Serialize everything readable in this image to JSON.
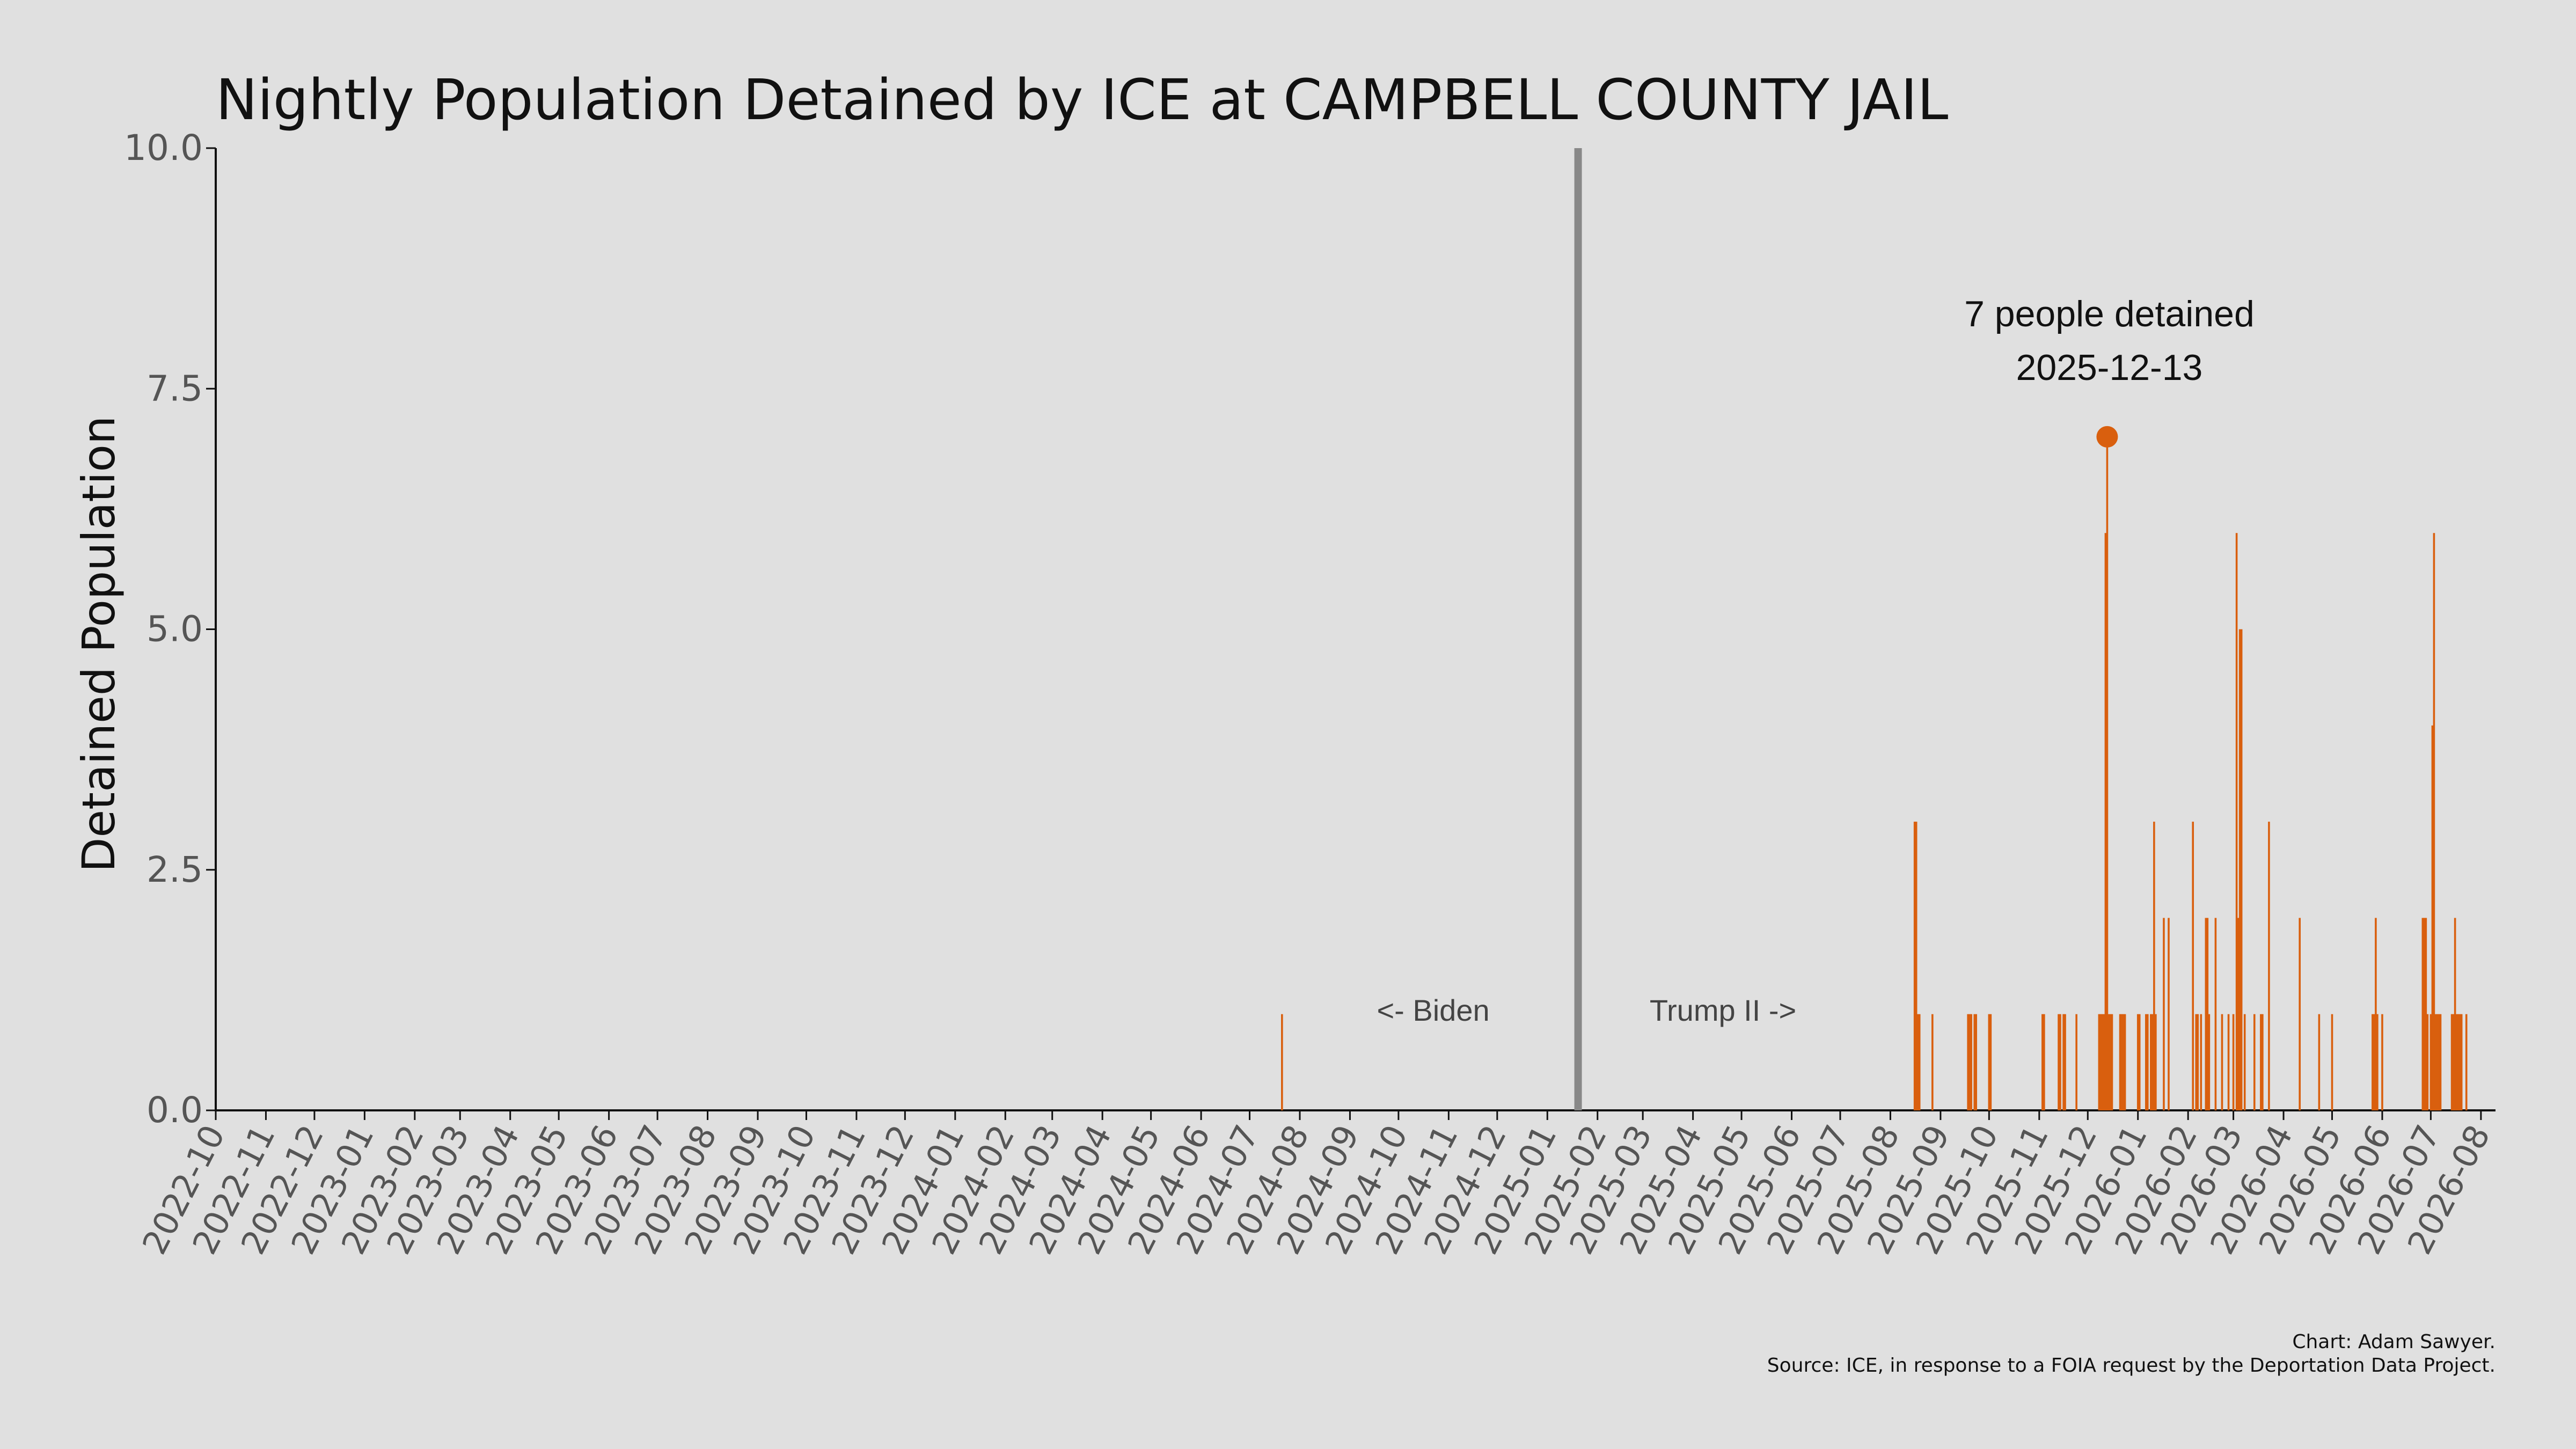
{
  "chart_data": {
    "type": "bar",
    "title": "Nightly Population Detained by ICE at CAMPBELL COUNTY JAIL",
    "ylabel": "Detained Population",
    "xlabel": "",
    "ylim": [
      0,
      10
    ],
    "xlim": [
      "2022-10-01",
      "2026-08-10"
    ],
    "y_ticks": [
      "0.0",
      "2.5",
      "5.0",
      "7.5",
      "10.0"
    ],
    "x_ticks": [
      "2022-10",
      "2022-11",
      "2022-12",
      "2023-01",
      "2023-02",
      "2023-03",
      "2023-04",
      "2023-05",
      "2023-06",
      "2023-07",
      "2023-08",
      "2023-09",
      "2023-10",
      "2023-11",
      "2023-12",
      "2024-01",
      "2024-02",
      "2024-03",
      "2024-04",
      "2024-05",
      "2024-06",
      "2024-07",
      "2024-08",
      "2024-09",
      "2024-10",
      "2024-11",
      "2024-12",
      "2025-01",
      "2025-02",
      "2025-03",
      "2025-04",
      "2025-05",
      "2025-06",
      "2025-07",
      "2025-08",
      "2025-09",
      "2025-10",
      "2025-11",
      "2025-12",
      "2026-01",
      "2026-02",
      "2026-03",
      "2026-04",
      "2026-05",
      "2026-06",
      "2026-07",
      "2026-08"
    ],
    "bar_color": "#d95f0e",
    "grid": false,
    "divider": {
      "date": "2025-01-20",
      "color": "#888888"
    },
    "era_labels": {
      "left": "<- Biden",
      "right": "Trump II ->"
    },
    "peak": {
      "date": "2025-12-13",
      "value": 7,
      "line1": "7 people detained",
      "line2": "2025-12-13"
    },
    "points": [
      {
        "x": "2024-07-21",
        "y": 1
      },
      {
        "x": "2025-08-16",
        "y": 3
      },
      {
        "x": "2025-08-17",
        "y": 3
      },
      {
        "x": "2025-08-18",
        "y": 1
      },
      {
        "x": "2025-08-19",
        "y": 1
      },
      {
        "x": "2025-08-27",
        "y": 1
      },
      {
        "x": "2025-09-18",
        "y": 1
      },
      {
        "x": "2025-09-19",
        "y": 1
      },
      {
        "x": "2025-09-20",
        "y": 1
      },
      {
        "x": "2025-09-22",
        "y": 1
      },
      {
        "x": "2025-09-23",
        "y": 1
      },
      {
        "x": "2025-10-01",
        "y": 1
      },
      {
        "x": "2025-10-02",
        "y": 1
      },
      {
        "x": "2025-11-03",
        "y": 1
      },
      {
        "x": "2025-11-04",
        "y": 1
      },
      {
        "x": "2025-11-13",
        "y": 1
      },
      {
        "x": "2025-11-14",
        "y": 1
      },
      {
        "x": "2025-11-16",
        "y": 1
      },
      {
        "x": "2025-11-17",
        "y": 1
      },
      {
        "x": "2025-11-24",
        "y": 1
      },
      {
        "x": "2025-12-08",
        "y": 1
      },
      {
        "x": "2025-12-09",
        "y": 1
      },
      {
        "x": "2025-12-10",
        "y": 1
      },
      {
        "x": "2025-12-11",
        "y": 1
      },
      {
        "x": "2025-12-12",
        "y": 6
      },
      {
        "x": "2025-12-13",
        "y": 7
      },
      {
        "x": "2025-12-14",
        "y": 1
      },
      {
        "x": "2025-12-15",
        "y": 1
      },
      {
        "x": "2025-12-16",
        "y": 1
      },
      {
        "x": "2025-12-21",
        "y": 1
      },
      {
        "x": "2025-12-22",
        "y": 1
      },
      {
        "x": "2025-12-23",
        "y": 1
      },
      {
        "x": "2025-12-24",
        "y": 1
      },
      {
        "x": "2026-01-01",
        "y": 1
      },
      {
        "x": "2026-01-02",
        "y": 1
      },
      {
        "x": "2026-01-06",
        "y": 1
      },
      {
        "x": "2026-01-07",
        "y": 1
      },
      {
        "x": "2026-01-09",
        "y": 1
      },
      {
        "x": "2026-01-10",
        "y": 1
      },
      {
        "x": "2026-01-11",
        "y": 3
      },
      {
        "x": "2026-01-12",
        "y": 1
      },
      {
        "x": "2026-01-17",
        "y": 2
      },
      {
        "x": "2026-01-20",
        "y": 2
      },
      {
        "x": "2026-02-04",
        "y": 3
      },
      {
        "x": "2026-02-06",
        "y": 1
      },
      {
        "x": "2026-02-07",
        "y": 1
      },
      {
        "x": "2026-02-09",
        "y": 1
      },
      {
        "x": "2026-02-12",
        "y": 2
      },
      {
        "x": "2026-02-13",
        "y": 2
      },
      {
        "x": "2026-02-14",
        "y": 1
      },
      {
        "x": "2026-02-18",
        "y": 2
      },
      {
        "x": "2026-02-22",
        "y": 1
      },
      {
        "x": "2026-02-26",
        "y": 1
      },
      {
        "x": "2026-03-01",
        "y": 1
      },
      {
        "x": "2026-03-03",
        "y": 6
      },
      {
        "x": "2026-03-04",
        "y": 2
      },
      {
        "x": "2026-03-05",
        "y": 5
      },
      {
        "x": "2026-03-06",
        "y": 5
      },
      {
        "x": "2026-03-08",
        "y": 1
      },
      {
        "x": "2026-03-14",
        "y": 1
      },
      {
        "x": "2026-03-18",
        "y": 1
      },
      {
        "x": "2026-03-19",
        "y": 1
      },
      {
        "x": "2026-03-23",
        "y": 3
      },
      {
        "x": "2026-04-11",
        "y": 2
      },
      {
        "x": "2026-04-23",
        "y": 1
      },
      {
        "x": "2026-05-01",
        "y": 1
      },
      {
        "x": "2026-05-26",
        "y": 1
      },
      {
        "x": "2026-05-27",
        "y": 1
      },
      {
        "x": "2026-05-28",
        "y": 2
      },
      {
        "x": "2026-05-29",
        "y": 1
      },
      {
        "x": "2026-06-01",
        "y": 1
      },
      {
        "x": "2026-06-26",
        "y": 2
      },
      {
        "x": "2026-06-27",
        "y": 2
      },
      {
        "x": "2026-06-28",
        "y": 2
      },
      {
        "x": "2026-06-29",
        "y": 1
      },
      {
        "x": "2026-07-01",
        "y": 1
      },
      {
        "x": "2026-07-02",
        "y": 4
      },
      {
        "x": "2026-07-03",
        "y": 6
      },
      {
        "x": "2026-07-04",
        "y": 1
      },
      {
        "x": "2026-07-05",
        "y": 1
      },
      {
        "x": "2026-07-06",
        "y": 1
      },
      {
        "x": "2026-07-07",
        "y": 1
      },
      {
        "x": "2026-07-14",
        "y": 1
      },
      {
        "x": "2026-07-15",
        "y": 1
      },
      {
        "x": "2026-07-16",
        "y": 2
      },
      {
        "x": "2026-07-17",
        "y": 1
      },
      {
        "x": "2026-07-18",
        "y": 1
      },
      {
        "x": "2026-07-19",
        "y": 1
      },
      {
        "x": "2026-07-20",
        "y": 1
      },
      {
        "x": "2026-07-23",
        "y": 1
      }
    ]
  },
  "credit": {
    "line1": "Chart: Adam Sawyer.",
    "line2": "Source: ICE, in response to a FOIA request by the Deportation Data Project."
  }
}
